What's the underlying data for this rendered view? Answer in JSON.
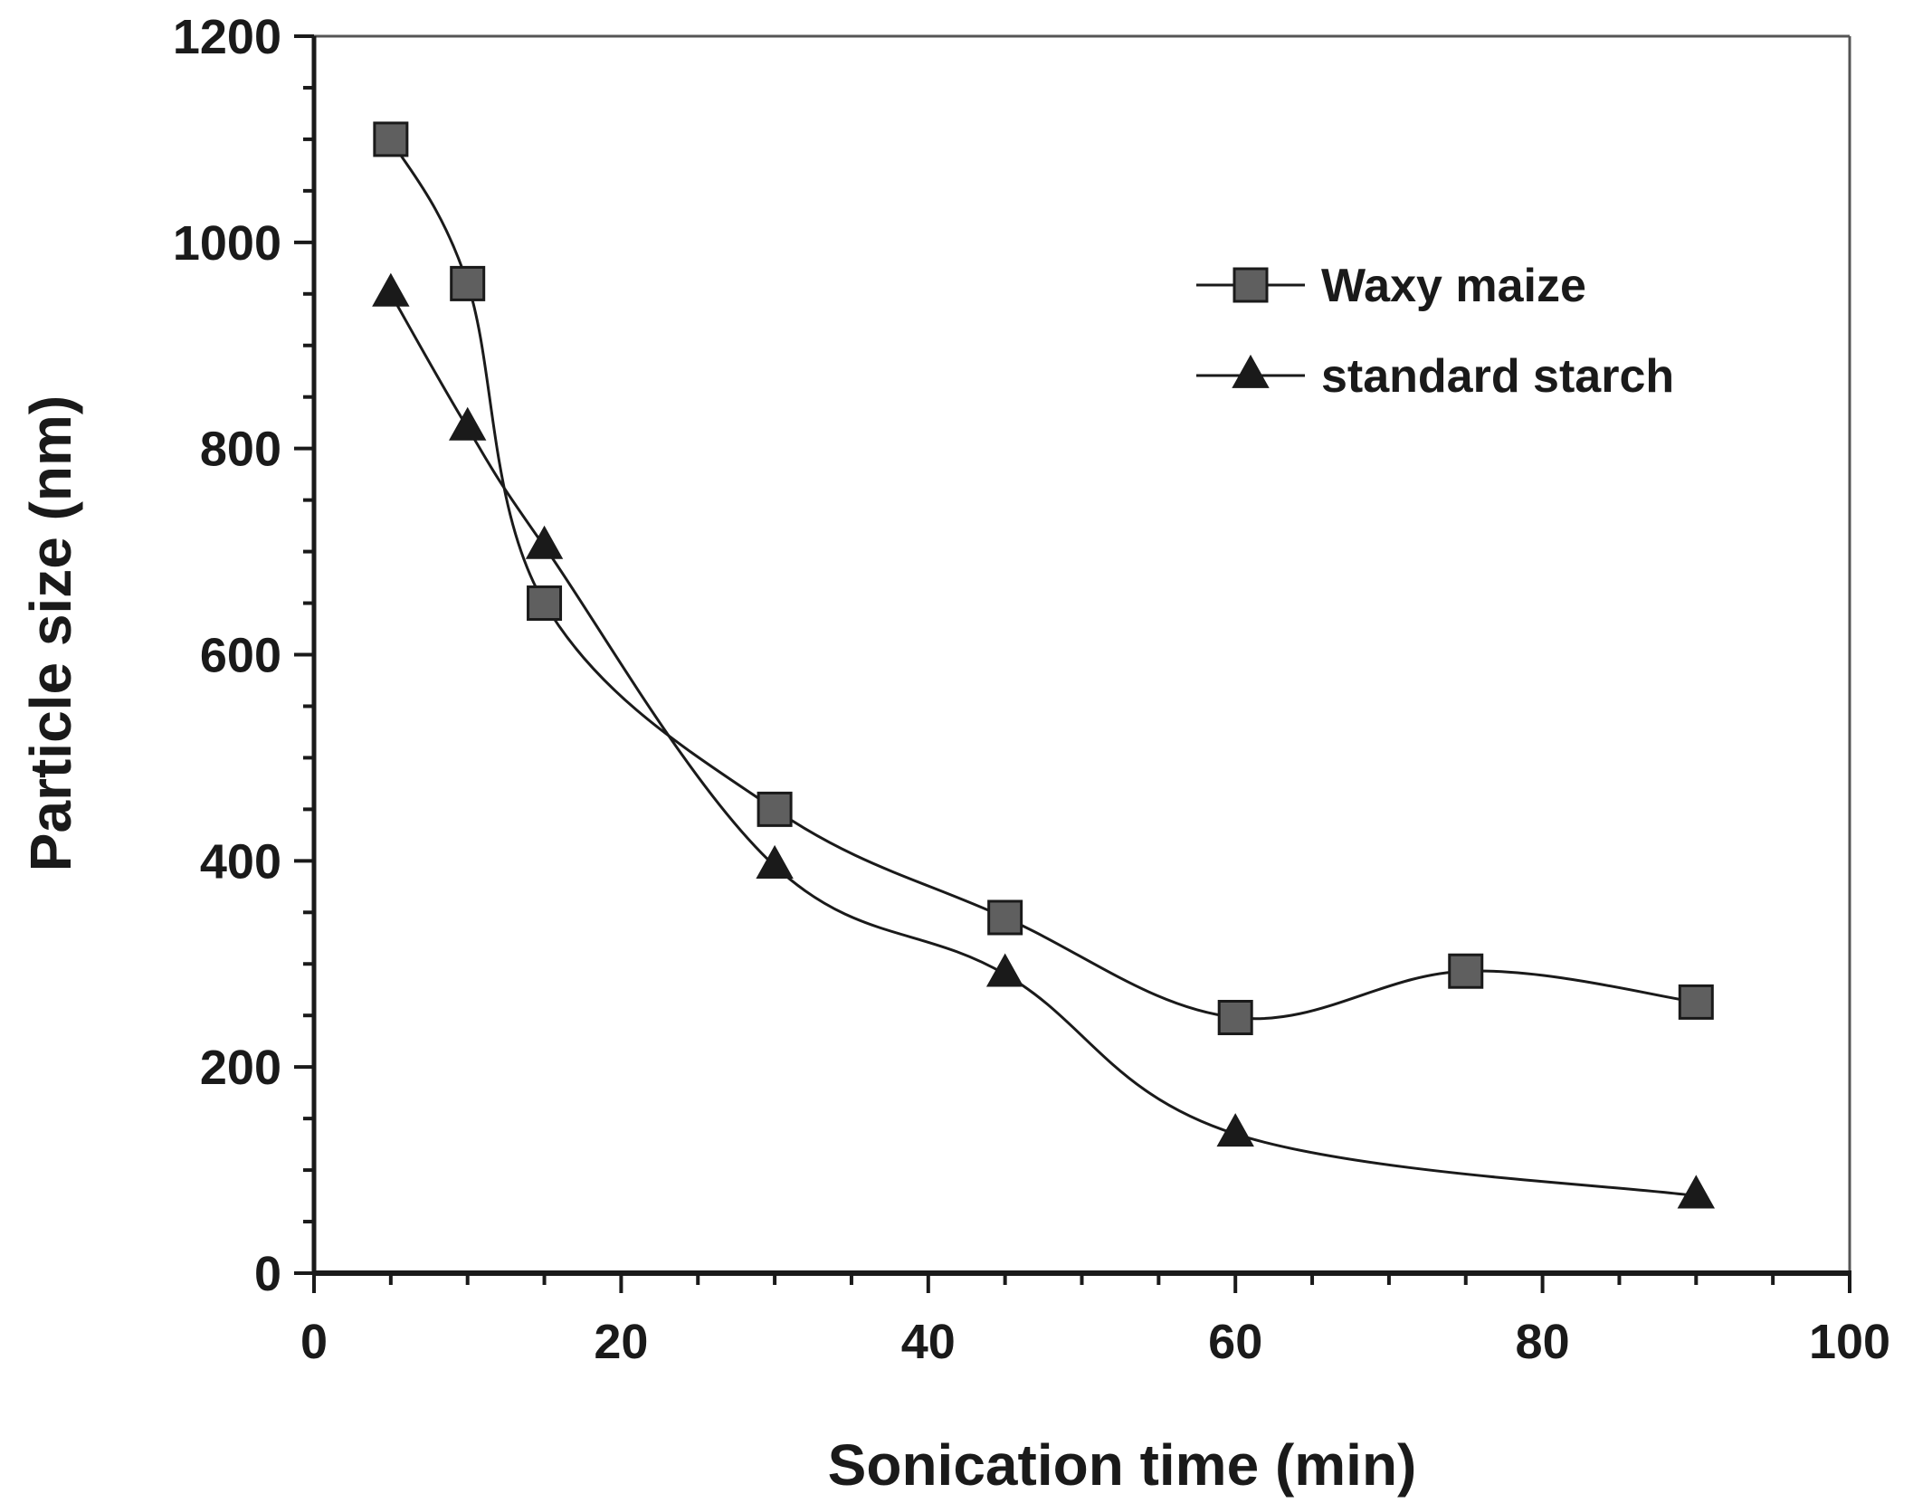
{
  "chart_data": {
    "type": "line",
    "title": "",
    "xlabel": "Sonication time (min)",
    "ylabel": "Particle size (nm)",
    "xlim": [
      0,
      100
    ],
    "ylim": [
      0,
      1200
    ],
    "xticks": [
      0,
      20,
      40,
      60,
      80,
      100
    ],
    "yticks": [
      0,
      200,
      400,
      600,
      800,
      1000,
      1200
    ],
    "x_minor_step": 5,
    "y_minor_step": 50,
    "grid": false,
    "legend_position": "top-right",
    "series": [
      {
        "name": "Waxy maize",
        "marker": "square",
        "color": "#5f5f5f",
        "x": [
          5,
          10,
          15,
          30,
          45,
          60,
          75,
          90
        ],
        "y": [
          1100,
          960,
          650,
          450,
          345,
          248,
          293,
          263
        ]
      },
      {
        "name": "standard starch",
        "marker": "triangle",
        "color": "#1a1a1a",
        "x": [
          5,
          10,
          15,
          30,
          45,
          60,
          90
        ],
        "y": [
          950,
          820,
          705,
          395,
          290,
          135,
          75
        ]
      }
    ]
  }
}
